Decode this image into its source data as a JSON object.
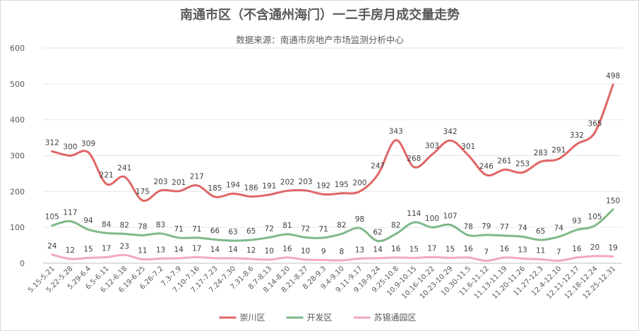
{
  "chart_data": {
    "type": "line",
    "title": "南通市区（不含通州海门）一二手房月成交量走势",
    "subtitle": "数据来源：南通市房地产市场监测分析中心",
    "xlabel": "",
    "ylabel": "",
    "ylim": [
      0,
      600
    ],
    "yticks": [
      0,
      100,
      200,
      300,
      400,
      500,
      600
    ],
    "grid": "horizontal",
    "legend_position": "bottom",
    "categories": [
      "5.15-5.21",
      "5.22-5.28",
      "5.29-6.4",
      "6.5-6.11",
      "6.12-6.18",
      "6.19-6.25",
      "6.26-7.2",
      "7.3-7.9",
      "7.10-7.16",
      "7.17-7.23",
      "7.24-7.30",
      "7.31-8.6",
      "8.7-8.13",
      "8.14-8.20",
      "8.21-8.27",
      "8.28-9.3",
      "9.4-9.10",
      "9.11-9.17",
      "9.18-9.24",
      "9.25-10.8",
      "10.9-10.15",
      "10.16-10.22",
      "10.23-10.29",
      "10.30-11.5",
      "11.6-11.12",
      "11.13-11.19",
      "11.20-11.26",
      "11.27-12.3",
      "12.4-12.10",
      "12.11-12.17",
      "12.18-12.24",
      "12.25-12.31"
    ],
    "series": [
      {
        "name": "崇川区",
        "color": "#e06666",
        "values": [
          312,
          300,
          309,
          221,
          241,
          175,
          203,
          201,
          217,
          185,
          194,
          186,
          191,
          202,
          203,
          192,
          195,
          200,
          247,
          343,
          268,
          303,
          342,
          301,
          246,
          261,
          253,
          283,
          291,
          332,
          365,
          498
        ]
      },
      {
        "name": "开发区",
        "color": "#7fb98a",
        "values": [
          105,
          117,
          94,
          84,
          82,
          78,
          83,
          71,
          71,
          66,
          63,
          65,
          72,
          81,
          72,
          71,
          82,
          98,
          62,
          82,
          114,
          100,
          107,
          78,
          79,
          77,
          74,
          65,
          74,
          93,
          105,
          150
        ]
      },
      {
        "name": "苏锡通园区",
        "color": "#f4a6c6",
        "values": [
          24,
          12,
          15,
          17,
          23,
          11,
          13,
          14,
          17,
          14,
          14,
          12,
          10,
          16,
          10,
          9,
          8,
          13,
          14,
          16,
          15,
          17,
          15,
          16,
          7,
          16,
          13,
          11,
          7,
          16,
          20,
          19
        ]
      }
    ]
  }
}
